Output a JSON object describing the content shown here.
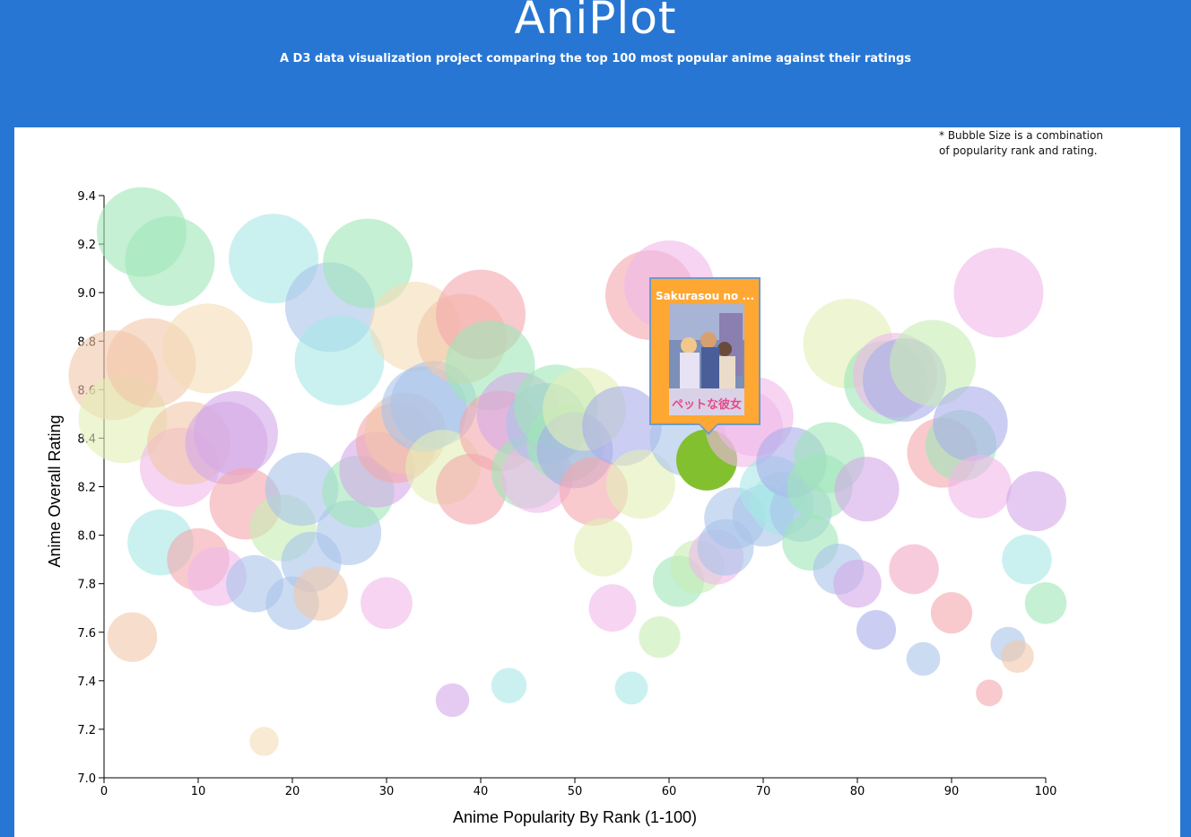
{
  "header": {
    "title": "AniPlot",
    "subtitle": "A D3 data visualization project comparing the top 100 most popular anime against their ratings"
  },
  "note": {
    "line1": "* Bubble Size is a combination",
    "line2": "of popularity rank and rating."
  },
  "tooltip": {
    "title": "Sakurasou no ...",
    "poster_text": "ペットな彼女"
  },
  "colors": {
    "background": "#2876d3",
    "highlight": "#82c030",
    "tooltip_bg": "#ffa733",
    "tooltip_border": "#6e9cc9",
    "palette": [
      "#9ee6b8",
      "#f2c6a8",
      "#f3dcb6",
      "#e3eeb6",
      "#f3a9c4",
      "#f4a6ab",
      "#a6e8e6",
      "#a9c3ea",
      "#d3a9e8",
      "#f0b8ea",
      "#a9aeea",
      "#c6edb2"
    ]
  },
  "chart_data": {
    "type": "scatter",
    "xlabel": "Anime Popularity By Rank (1-100)",
    "ylabel": "Anime Overall Rating",
    "xlim": [
      0,
      100
    ],
    "ylim": [
      7.0,
      9.4
    ],
    "xticks": [
      "0",
      "10",
      "20",
      "30",
      "40",
      "50",
      "60",
      "70",
      "80",
      "90",
      "100"
    ],
    "yticks": [
      "7.0",
      "7.2",
      "7.4",
      "7.6",
      "7.8",
      "8.0",
      "8.2",
      "8.4",
      "8.6",
      "8.8",
      "9.0",
      "9.2",
      "9.4"
    ],
    "highlight_index": 63,
    "points": [
      {
        "x": 1,
        "y": 8.66,
        "c": 1
      },
      {
        "x": 2,
        "y": 8.48,
        "c": 3
      },
      {
        "x": 3,
        "y": 7.58,
        "c": 1
      },
      {
        "x": 4,
        "y": 9.25,
        "c": 0
      },
      {
        "x": 5,
        "y": 8.71,
        "c": 1
      },
      {
        "x": 6,
        "y": 7.97,
        "c": 6
      },
      {
        "x": 7,
        "y": 9.13,
        "c": 0
      },
      {
        "x": 8,
        "y": 8.28,
        "c": 9
      },
      {
        "x": 9,
        "y": 8.38,
        "c": 1
      },
      {
        "x": 10,
        "y": 7.9,
        "c": 5
      },
      {
        "x": 11,
        "y": 8.77,
        "c": 2
      },
      {
        "x": 12,
        "y": 7.83,
        "c": 9
      },
      {
        "x": 13,
        "y": 8.38,
        "c": 8
      },
      {
        "x": 14,
        "y": 8.42,
        "c": 8
      },
      {
        "x": 15,
        "y": 8.13,
        "c": 5
      },
      {
        "x": 16,
        "y": 7.8,
        "c": 7
      },
      {
        "x": 17,
        "y": 7.15,
        "c": 2
      },
      {
        "x": 18,
        "y": 9.14,
        "c": 6
      },
      {
        "x": 19,
        "y": 8.03,
        "c": 11
      },
      {
        "x": 20,
        "y": 7.72,
        "c": 7
      },
      {
        "x": 21,
        "y": 8.19,
        "c": 7
      },
      {
        "x": 22,
        "y": 7.89,
        "c": 7
      },
      {
        "x": 23,
        "y": 7.76,
        "c": 1
      },
      {
        "x": 24,
        "y": 8.94,
        "c": 7
      },
      {
        "x": 25,
        "y": 8.72,
        "c": 6
      },
      {
        "x": 26,
        "y": 8.01,
        "c": 7
      },
      {
        "x": 27,
        "y": 8.18,
        "c": 0
      },
      {
        "x": 28,
        "y": 9.12,
        "c": 0
      },
      {
        "x": 29,
        "y": 8.27,
        "c": 8
      },
      {
        "x": 30,
        "y": 7.72,
        "c": 9
      },
      {
        "x": 31,
        "y": 8.38,
        "c": 5
      },
      {
        "x": 32,
        "y": 8.42,
        "c": 1
      },
      {
        "x": 33,
        "y": 8.86,
        "c": 2
      },
      {
        "x": 34,
        "y": 8.52,
        "c": 7
      },
      {
        "x": 35,
        "y": 8.54,
        "c": 7
      },
      {
        "x": 36,
        "y": 8.28,
        "c": 3
      },
      {
        "x": 37,
        "y": 7.32,
        "c": 8
      },
      {
        "x": 38,
        "y": 8.81,
        "c": 1
      },
      {
        "x": 39,
        "y": 8.19,
        "c": 5
      },
      {
        "x": 40,
        "y": 8.91,
        "c": 5
      },
      {
        "x": 41,
        "y": 8.7,
        "c": 0
      },
      {
        "x": 42,
        "y": 8.43,
        "c": 5
      },
      {
        "x": 43,
        "y": 7.38,
        "c": 6
      },
      {
        "x": 44,
        "y": 8.5,
        "c": 8
      },
      {
        "x": 45,
        "y": 8.26,
        "c": 0
      },
      {
        "x": 46,
        "y": 8.24,
        "c": 9
      },
      {
        "x": 47,
        "y": 8.46,
        "c": 7
      },
      {
        "x": 48,
        "y": 8.53,
        "c": 0
      },
      {
        "x": 49,
        "y": 8.38,
        "c": 0
      },
      {
        "x": 50,
        "y": 8.35,
        "c": 10
      },
      {
        "x": 51,
        "y": 8.52,
        "c": 3
      },
      {
        "x": 52,
        "y": 8.18,
        "c": 5
      },
      {
        "x": 53,
        "y": 7.95,
        "c": 3
      },
      {
        "x": 54,
        "y": 7.7,
        "c": 9
      },
      {
        "x": 55,
        "y": 8.45,
        "c": 10
      },
      {
        "x": 56,
        "y": 7.37,
        "c": 6
      },
      {
        "x": 57,
        "y": 8.21,
        "c": 3
      },
      {
        "x": 58,
        "y": 8.99,
        "c": 5
      },
      {
        "x": 59,
        "y": 7.58,
        "c": 11
      },
      {
        "x": 60,
        "y": 9.03,
        "c": 9
      },
      {
        "x": 61,
        "y": 7.81,
        "c": 0
      },
      {
        "x": 62,
        "y": 8.4,
        "c": 7
      },
      {
        "x": 63,
        "y": 7.87,
        "c": 11
      },
      {
        "x": 64,
        "y": 8.31,
        "c": 0
      },
      {
        "x": 65,
        "y": 7.91,
        "c": 9
      },
      {
        "x": 66,
        "y": 7.95,
        "c": 7
      },
      {
        "x": 67,
        "y": 8.07,
        "c": 7
      },
      {
        "x": 68,
        "y": 8.44,
        "c": 9
      },
      {
        "x": 69,
        "y": 8.49,
        "c": 9
      },
      {
        "x": 70,
        "y": 8.08,
        "c": 7
      },
      {
        "x": 71,
        "y": 8.19,
        "c": 6
      },
      {
        "x": 72,
        "y": 8.13,
        "c": 6
      },
      {
        "x": 73,
        "y": 8.3,
        "c": 10
      },
      {
        "x": 74,
        "y": 8.1,
        "c": 7
      },
      {
        "x": 75,
        "y": 7.97,
        "c": 0
      },
      {
        "x": 76,
        "y": 8.2,
        "c": 0
      },
      {
        "x": 77,
        "y": 8.32,
        "c": 0
      },
      {
        "x": 78,
        "y": 7.86,
        "c": 7
      },
      {
        "x": 79,
        "y": 8.79,
        "c": 3
      },
      {
        "x": 80,
        "y": 7.8,
        "c": 8
      },
      {
        "x": 81,
        "y": 8.19,
        "c": 8
      },
      {
        "x": 82,
        "y": 7.61,
        "c": 10
      },
      {
        "x": 83,
        "y": 8.63,
        "c": 0
      },
      {
        "x": 84,
        "y": 8.66,
        "c": 9
      },
      {
        "x": 85,
        "y": 8.64,
        "c": 10
      },
      {
        "x": 86,
        "y": 7.86,
        "c": 4
      },
      {
        "x": 87,
        "y": 7.49,
        "c": 7
      },
      {
        "x": 88,
        "y": 8.71,
        "c": 11
      },
      {
        "x": 89,
        "y": 8.34,
        "c": 5
      },
      {
        "x": 90,
        "y": 7.68,
        "c": 5
      },
      {
        "x": 91,
        "y": 8.37,
        "c": 0
      },
      {
        "x": 92,
        "y": 8.46,
        "c": 10
      },
      {
        "x": 93,
        "y": 8.2,
        "c": 9
      },
      {
        "x": 94,
        "y": 7.35,
        "c": 5
      },
      {
        "x": 95,
        "y": 9.0,
        "c": 9
      },
      {
        "x": 96,
        "y": 7.55,
        "c": 7
      },
      {
        "x": 97,
        "y": 7.5,
        "c": 1
      },
      {
        "x": 98,
        "y": 7.9,
        "c": 6
      },
      {
        "x": 99,
        "y": 8.14,
        "c": 8
      },
      {
        "x": 100,
        "y": 7.72,
        "c": 0
      }
    ]
  }
}
